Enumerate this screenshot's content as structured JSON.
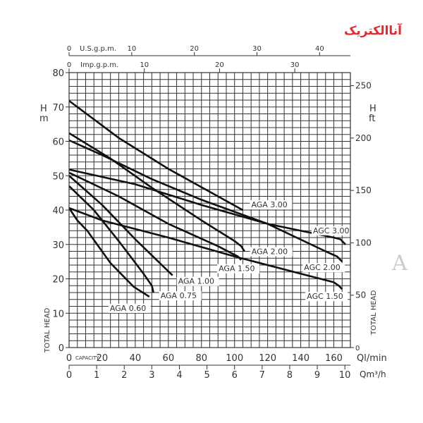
{
  "logo": {
    "text": "آناالکتریک",
    "color": "#e8262b"
  },
  "watermark": {
    "text": "A"
  },
  "chart_data": {
    "type": "line",
    "title": "",
    "xlabel": "Ql/min",
    "xlabel_bottom_secondary": "Qm³/h",
    "capacity_label": "CAPACITY",
    "x_range": [
      0,
      170
    ],
    "x_ticks": [
      0,
      20,
      40,
      60,
      80,
      100,
      120,
      140,
      160
    ],
    "x2_ticks": [
      0,
      1,
      2,
      3,
      4,
      5,
      6,
      7,
      8,
      9,
      10
    ],
    "top_axis_us": {
      "label": "U.S.g.p.m.",
      "ticks": [
        0,
        10,
        20,
        30,
        40
      ]
    },
    "top_axis_imp": {
      "label": "Imp.g.p.m.",
      "ticks": [
        0,
        10,
        20,
        30
      ]
    },
    "ylabel_left": {
      "unit_h": "H",
      "unit": "m",
      "title": "TOTAL HEAD"
    },
    "ylabel_right": {
      "unit_h": "H",
      "unit": "ft",
      "title": "TOTAL HEAD"
    },
    "y_range": [
      0,
      80
    ],
    "y_ticks": [
      0,
      10,
      20,
      30,
      40,
      50,
      60,
      70,
      80
    ],
    "y2_ticks": [
      0,
      50,
      100,
      150,
      200,
      250
    ],
    "grid": true,
    "series": [
      {
        "name": "AGA 3.00",
        "points": [
          [
            0,
            71.8
          ],
          [
            30,
            61
          ],
          [
            60,
            52
          ],
          [
            90,
            44
          ],
          [
            105,
            40
          ]
        ]
      },
      {
        "name": "AGA 2.00",
        "points": [
          [
            0,
            62.4
          ],
          [
            25,
            55
          ],
          [
            50,
            46.5
          ],
          [
            80,
            37
          ],
          [
            100,
            31
          ],
          [
            104,
            29.5
          ],
          [
            106,
            28
          ]
        ]
      },
      {
        "name": "AGA 1.50",
        "points": [
          [
            0,
            50.9
          ],
          [
            30,
            44
          ],
          [
            60,
            36
          ],
          [
            90,
            29.5
          ],
          [
            102,
            26.5
          ],
          [
            104,
            25.5
          ]
        ]
      },
      {
        "name": "AGA 1.00",
        "points": [
          [
            0,
            50
          ],
          [
            20,
            41.5
          ],
          [
            40,
            31.5
          ],
          [
            55,
            24.5
          ],
          [
            62.5,
            21
          ]
        ]
      },
      {
        "name": "AGA 0.75",
        "points": [
          [
            0,
            47
          ],
          [
            15,
            40
          ],
          [
            30,
            31
          ],
          [
            45,
            21.5
          ],
          [
            50,
            18
          ],
          [
            51,
            16
          ]
        ]
      },
      {
        "name": "AGA 0.60",
        "points": [
          [
            0,
            40.6
          ],
          [
            5,
            37
          ],
          [
            11,
            34
          ],
          [
            25,
            24.6
          ],
          [
            39,
            17.7
          ],
          [
            48.5,
            14.8
          ]
        ]
      },
      {
        "name": "AGC 3.00",
        "points": [
          [
            0,
            51.8
          ],
          [
            40,
            47.5
          ],
          [
            80,
            41.5
          ],
          [
            120,
            36
          ],
          [
            160,
            32
          ],
          [
            164,
            31.5
          ],
          [
            167,
            30
          ]
        ]
      },
      {
        "name": "AGC 2.00",
        "points": [
          [
            0,
            60.3
          ],
          [
            20,
            56
          ],
          [
            50,
            49
          ],
          [
            80,
            43
          ],
          [
            120,
            36
          ],
          [
            155,
            28
          ],
          [
            162,
            26.5
          ],
          [
            165,
            25
          ]
        ]
      },
      {
        "name": "AGC 1.50",
        "points": [
          [
            0,
            40.6
          ],
          [
            20,
            37
          ],
          [
            60,
            32
          ],
          [
            100,
            26.5
          ],
          [
            140,
            21.5
          ],
          [
            160,
            19
          ],
          [
            163,
            18
          ],
          [
            165,
            17
          ]
        ]
      }
    ]
  }
}
